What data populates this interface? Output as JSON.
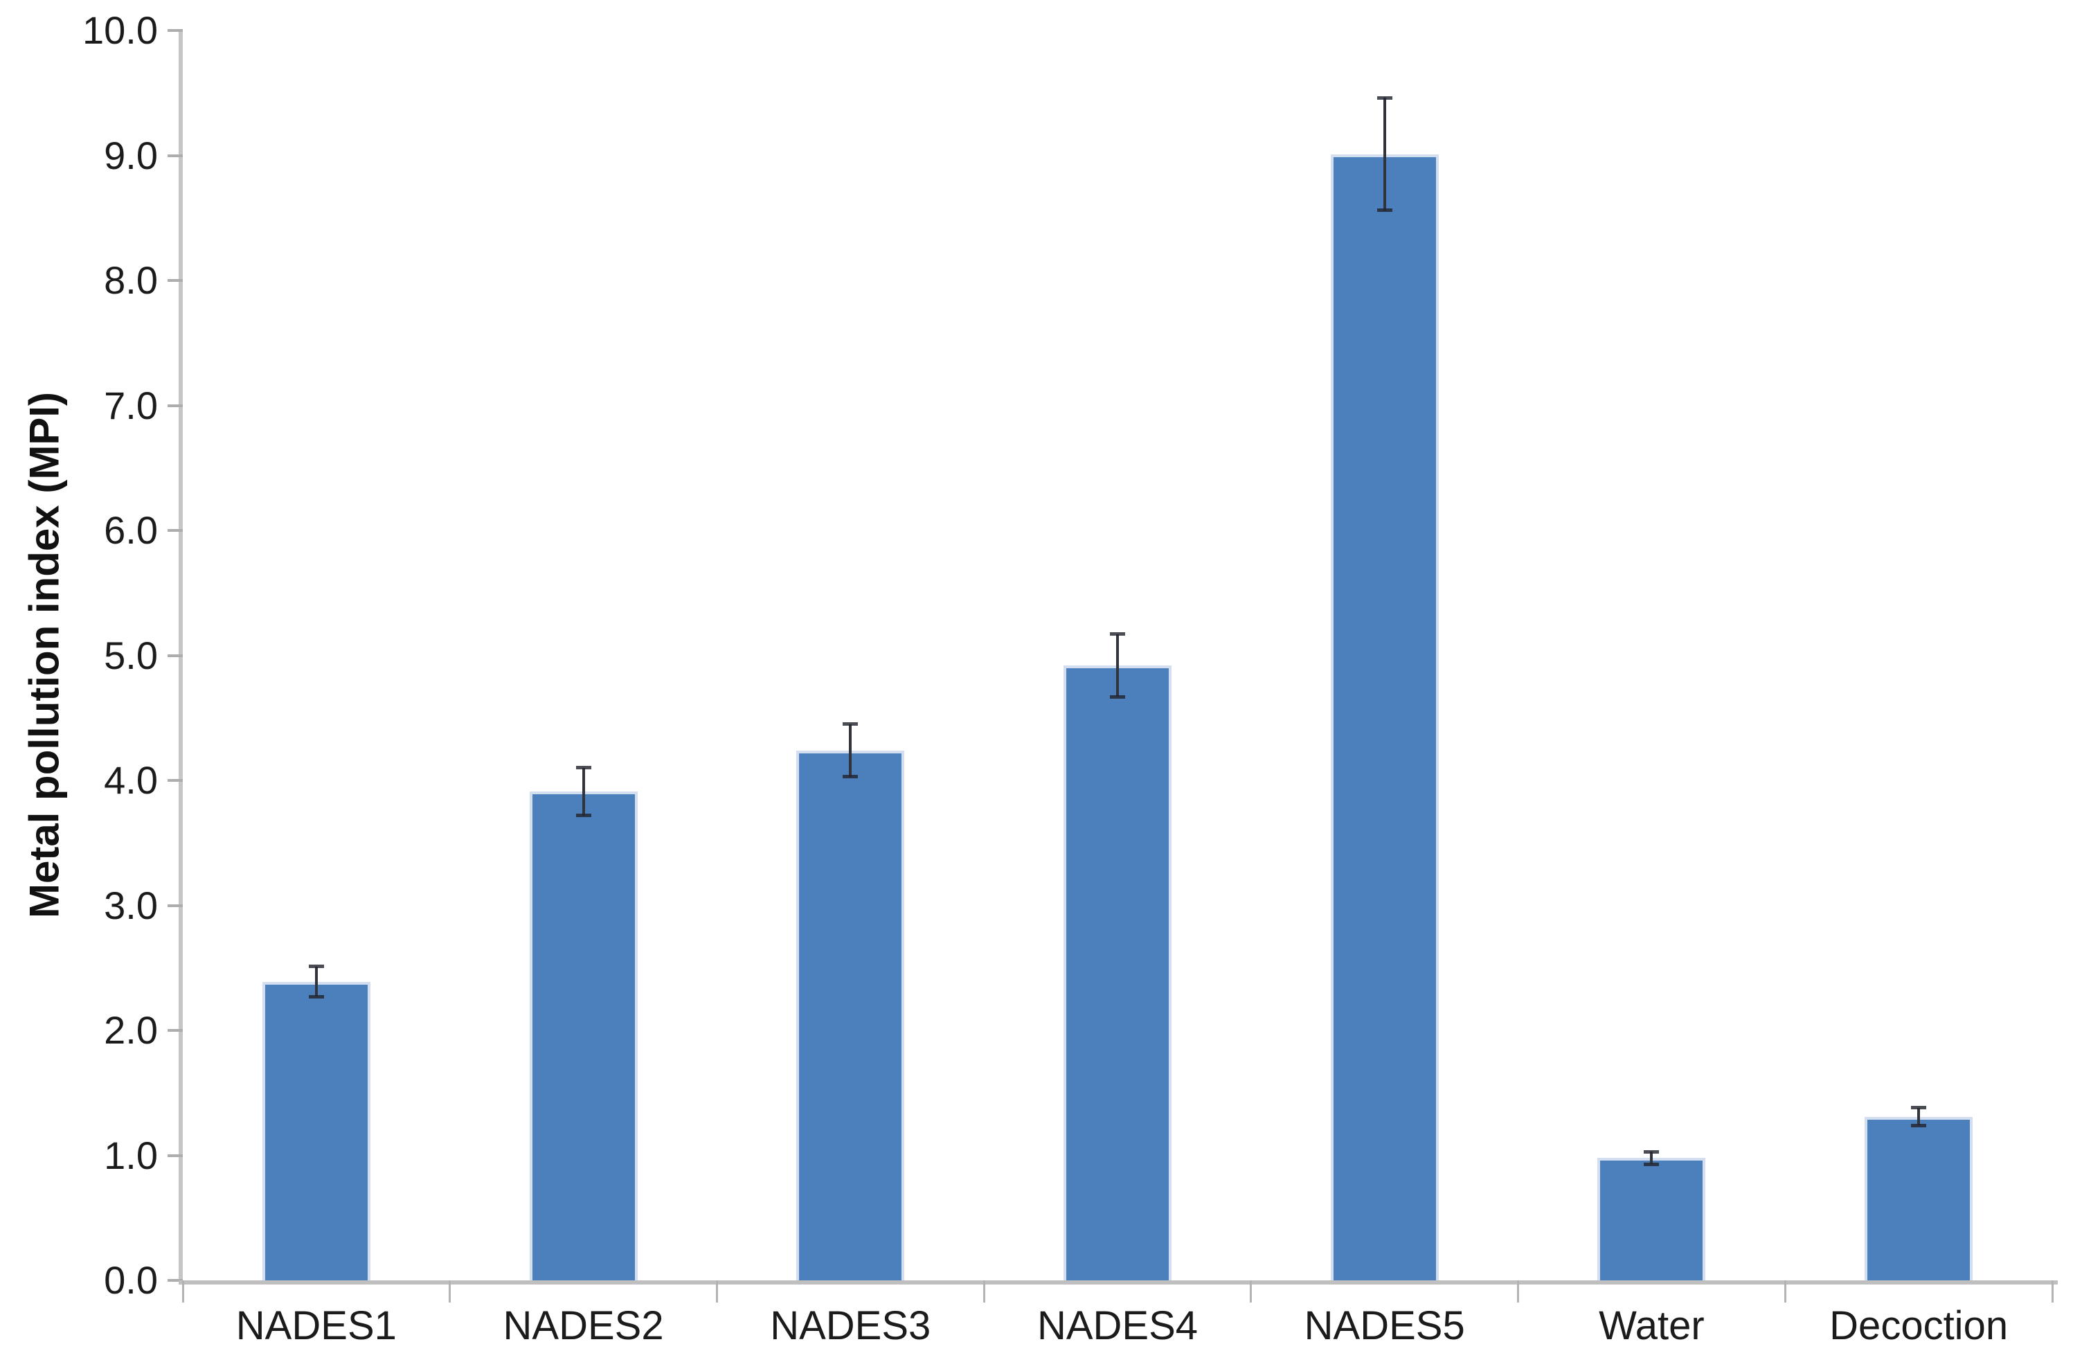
{
  "chart_data": {
    "type": "bar",
    "title": "",
    "xlabel": "",
    "ylabel": "Metal pollution index (MPI)",
    "categories": [
      "NADES1",
      "NADES2",
      "NADES3",
      "NADES4",
      "NADES5",
      "Water",
      "Decoction"
    ],
    "values": [
      2.39,
      3.91,
      4.24,
      4.92,
      9.01,
      0.98,
      1.31
    ],
    "error_bars": [
      0.12,
      0.19,
      0.21,
      0.25,
      0.45,
      0.05,
      0.07
    ],
    "ylim": [
      0,
      10
    ],
    "ytick_step": 1.0,
    "ytick_labels": [
      "0.0",
      "1.0",
      "2.0",
      "3.0",
      "4.0",
      "5.0",
      "6.0",
      "7.0",
      "8.0",
      "9.0",
      "10.0"
    ],
    "grid": false,
    "legend": null,
    "colors": {
      "bar_fill": "#4c80bd",
      "bar_edge": "#d3dff0",
      "error_bar": "#31343b",
      "axis_line": "#c6c6c6",
      "tick_mark": "#adadad",
      "label_text": "#1b1b1b"
    }
  }
}
